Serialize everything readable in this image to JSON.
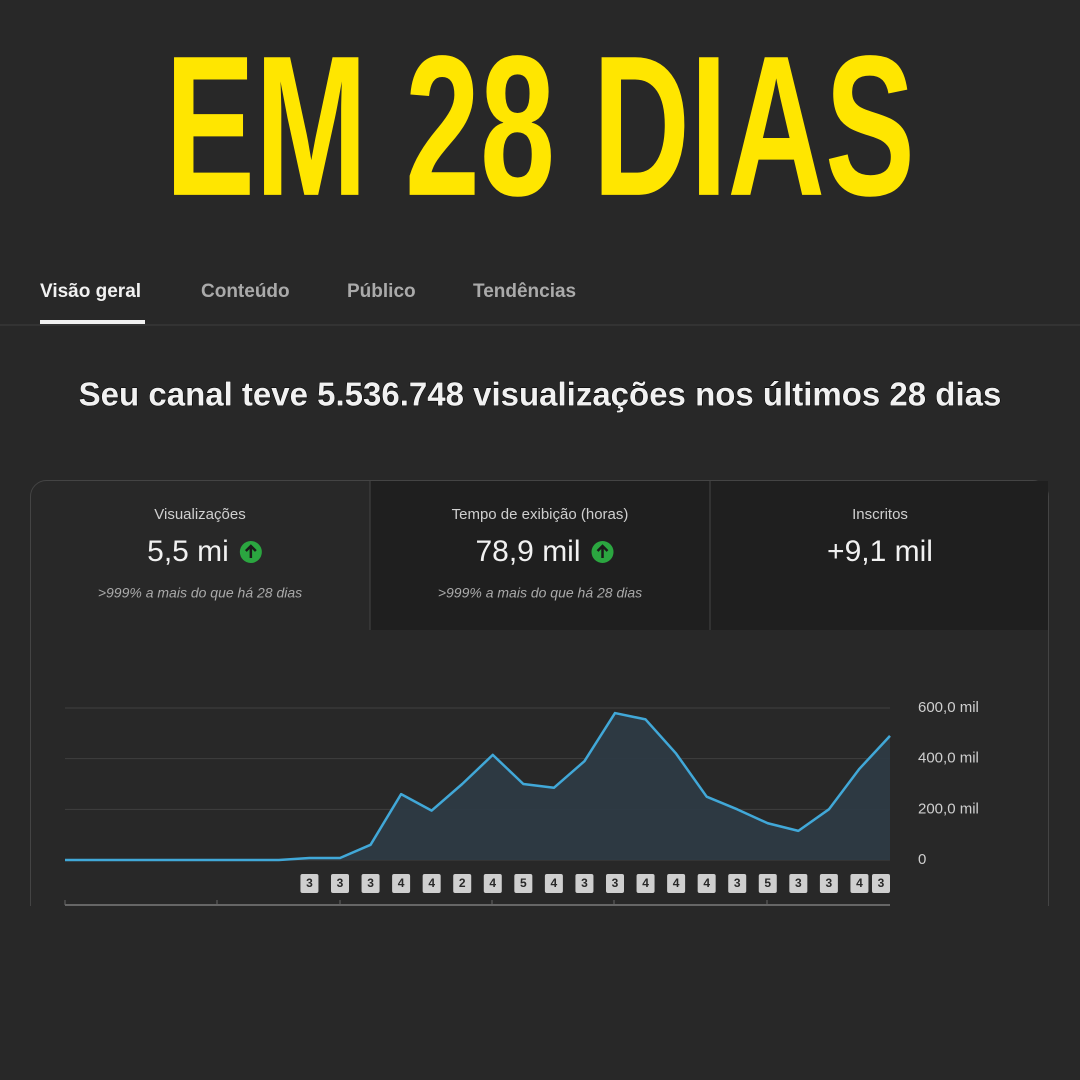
{
  "header": {
    "title": "EM 28 DIAS"
  },
  "tabs": [
    "Visão geral",
    "Conteúdo",
    "Público",
    "Tendências"
  ],
  "headline": "Seu canal teve 5.536.748 visualizações nos últimos 28 dias",
  "cards": [
    {
      "label": "Visualizações",
      "value": "5,5 mi",
      "note": ">999% a mais do que há 28 dias"
    },
    {
      "label": "Tempo de exibição (horas)",
      "value": "78,9 mil",
      "note": ">999% a mais do que há 28 dias"
    },
    {
      "label": "Inscritos",
      "value": "+9,1 mil"
    }
  ],
  "chart_data": {
    "type": "area",
    "color": "#41a8d8",
    "values": [
      0,
      0,
      0,
      0,
      0,
      0,
      0,
      0,
      8000,
      8000,
      60000,
      260000,
      195000,
      300000,
      415000,
      300000,
      285000,
      390000,
      580000,
      555000,
      420000,
      250000,
      200000,
      145000,
      115000,
      200000,
      360000,
      490000
    ],
    "badges": [
      null,
      null,
      null,
      null,
      null,
      null,
      null,
      null,
      "3",
      "3",
      "3",
      "4",
      "4",
      "2",
      "4",
      "5",
      "4",
      "3",
      "3",
      "4",
      "4",
      "4",
      "3",
      "5",
      "3",
      "3",
      "4",
      "3"
    ],
    "ylim": [
      0,
      600000
    ],
    "yticks": [
      0,
      {
        "value": 200000,
        "label": "200,0 mil"
      },
      {
        "value": 400000,
        "label": "400,0 mil"
      },
      {
        "value": 600000,
        "label": "600,0 mil"
      }
    ],
    "grid": true
  }
}
